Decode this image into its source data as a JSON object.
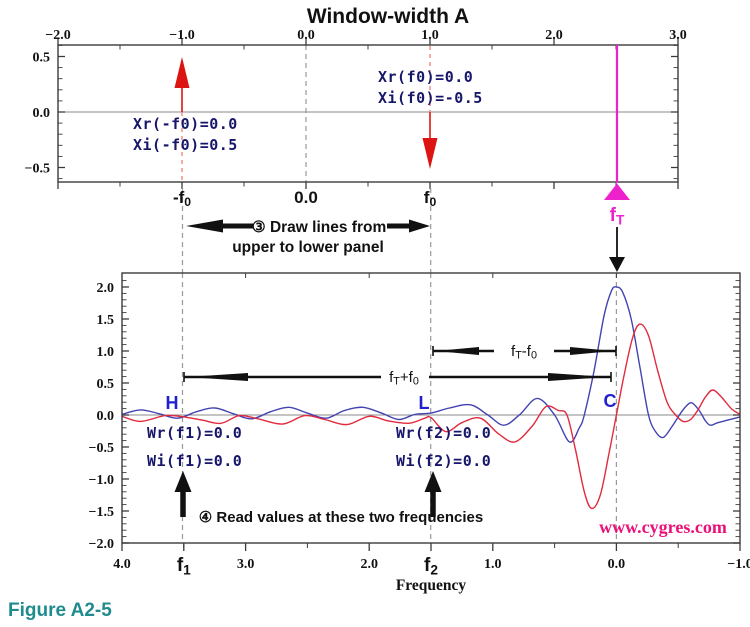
{
  "title": "Window-width A",
  "figure_caption": "Figure A2-5",
  "watermark": "www.cygres.com",
  "colors": {
    "arrow_red": "#dd1512",
    "dashed_red": "#f0857f",
    "magenta": "#ee22cc",
    "watermark_pink": "#ea1178",
    "navy_text": "#16166b",
    "hlc_blue": "#2020cc",
    "curve_blue": "#4343b2",
    "curve_red": "#e12b3e",
    "caption_teal": "#1f8b8d",
    "border_gray": "#3b3b3b",
    "zero_gray": "#888888",
    "dash_gray": "#9a9a9a"
  },
  "top_panel": {
    "x_ticks": [
      {
        "label": "−2.0",
        "f": -2
      },
      {
        "label": "−1.0",
        "f": -1
      },
      {
        "label": "0.0",
        "f": 0
      },
      {
        "label": "1.0",
        "f": 1
      },
      {
        "label": "2.0",
        "f": 2
      },
      {
        "label": "3.0",
        "f": 3
      }
    ],
    "y_ticks": [
      {
        "label": "0.5",
        "v": 0.5
      },
      {
        "label": "0.0",
        "v": 0.0
      },
      {
        "label": "−0.5",
        "v": -0.5
      }
    ],
    "value_labels": {
      "xr_neg": "Xr(-f0)=0.0",
      "xi_neg": "Xi(-f0)=0.5",
      "xr_pos": "Xr(f0)=0.0",
      "xi_pos": "Xi(f0)=-0.5"
    },
    "below_labels": {
      "neg": "-f0",
      "zero": "0.0",
      "pos": "f0"
    },
    "ft_label": "fT"
  },
  "annotations": {
    "step3_line1": "③ Draw lines from",
    "step3_line2": "upper to lower panel",
    "step4": "④ Read values at these two frequencies"
  },
  "bottom_panel": {
    "x_ticks": [
      {
        "label": "4.0",
        "f": 4
      },
      {
        "label": "3.0",
        "f": 3
      },
      {
        "label": "2.0",
        "f": 2
      },
      {
        "label": "1.0",
        "f": 1
      },
      {
        "label": "0.0",
        "f": 0
      },
      {
        "label": "−1.0",
        "f": -1
      }
    ],
    "freq_marks": [
      {
        "label": "f1",
        "f": 3.5
      },
      {
        "label": "f2",
        "f": 1.5
      }
    ],
    "y_ticks": [
      {
        "label": "2.0",
        "v": 2.0
      },
      {
        "label": "1.5",
        "v": 1.5
      },
      {
        "label": "1.0",
        "v": 1.0
      },
      {
        "label": "0.5",
        "v": 0.5
      },
      {
        "label": "0.0",
        "v": 0.0
      },
      {
        "label": "−0.5",
        "v": -0.5
      },
      {
        "label": "−1.0",
        "v": -1.0
      },
      {
        "label": "−1.5",
        "v": -1.5
      },
      {
        "label": "−2.0",
        "v": -2.0
      }
    ],
    "xlabel": "Frequency",
    "point_labels": {
      "H": "H",
      "L": "L",
      "C": "C"
    },
    "value_labels": {
      "wr_f1": "Wr(f1)=0.0",
      "wi_f1": "Wi(f1)=0.0",
      "wr_f2": "Wr(f2)=0.0",
      "wi_f2": "Wi(f2)=0.0"
    },
    "arrow_labels": {
      "ft_minus": "fT-f0",
      "ft_plus": "fT+f0"
    }
  },
  "chart_data": [
    {
      "type": "stem",
      "title": "Window-width A",
      "xlim": [
        -2,
        3
      ],
      "ylim": [
        -0.63,
        0.6
      ],
      "grid": false,
      "points": [
        {
          "f": -1.0,
          "Xr": 0.0,
          "Xi": 0.5,
          "arrow": "up",
          "color": "#dd1512"
        },
        {
          "f": 1.0,
          "Xr": 0.0,
          "Xi": -0.5,
          "arrow": "down",
          "color": "#dd1512"
        }
      ],
      "fT_marker": {
        "f": 2.5,
        "color": "#ee22cc"
      }
    },
    {
      "type": "line",
      "xlabel": "Frequency",
      "xlim": [
        4,
        -1
      ],
      "ylim": [
        -2,
        2
      ],
      "grid": false,
      "values_at": {
        "f1": 3.5,
        "f2": 1.5,
        "Wr_f1": 0.0,
        "Wi_f1": 0.0,
        "Wr_f2": 0.0,
        "Wi_f2": 0.0,
        "C": 0.0
      },
      "series": [
        {
          "name": "Wr",
          "color": "#4343b2",
          "points": [
            [
              4.0,
              0.01
            ],
            [
              3.85,
              0.08
            ],
            [
              3.7,
              0.02
            ],
            [
              3.55,
              -0.05
            ],
            [
              3.4,
              0.05
            ],
            [
              3.25,
              0.11
            ],
            [
              3.1,
              0.02
            ],
            [
              2.95,
              -0.06
            ],
            [
              2.8,
              0.05
            ],
            [
              2.65,
              0.12
            ],
            [
              2.5,
              0.03
            ],
            [
              2.35,
              -0.05
            ],
            [
              2.2,
              0.07
            ],
            [
              2.05,
              0.12
            ],
            [
              1.9,
              0.03
            ],
            [
              1.76,
              -0.07
            ],
            [
              1.63,
              0.01
            ],
            [
              1.5,
              0.03
            ],
            [
              1.35,
              0.11
            ],
            [
              1.18,
              0.16
            ],
            [
              1.04,
              0.0
            ],
            [
              0.91,
              -0.16
            ],
            [
              0.78,
              0.01
            ],
            [
              0.64,
              0.26
            ],
            [
              0.5,
              0.0
            ],
            [
              0.38,
              -0.42
            ],
            [
              0.3,
              -0.2
            ],
            [
              0.26,
              0.0
            ],
            [
              0.18,
              0.7
            ],
            [
              0.1,
              1.55
            ],
            [
              0.04,
              1.94
            ],
            [
              0.0,
              2.0
            ],
            [
              -0.05,
              1.92
            ],
            [
              -0.12,
              1.5
            ],
            [
              -0.19,
              0.75
            ],
            [
              -0.26,
              0.0
            ],
            [
              -0.32,
              -0.27
            ],
            [
              -0.38,
              -0.35
            ],
            [
              -0.45,
              -0.18
            ],
            [
              -0.51,
              0.0
            ],
            [
              -0.56,
              0.13
            ],
            [
              -0.61,
              0.19
            ],
            [
              -0.67,
              0.07
            ],
            [
              -0.72,
              -0.09
            ],
            [
              -0.76,
              -0.16
            ],
            [
              -0.82,
              -0.12
            ],
            [
              -0.9,
              -0.08
            ],
            [
              -1.0,
              -0.03
            ]
          ]
        },
        {
          "name": "Wi",
          "color": "#e12b3e",
          "points": [
            [
              4.0,
              -0.02
            ],
            [
              3.85,
              -0.1
            ],
            [
              3.65,
              -0.01
            ],
            [
              3.5,
              -0.03
            ],
            [
              3.35,
              -0.08
            ],
            [
              3.2,
              -0.13
            ],
            [
              3.05,
              -0.01
            ],
            [
              2.9,
              -0.06
            ],
            [
              2.7,
              -0.14
            ],
            [
              2.52,
              -0.01
            ],
            [
              2.36,
              -0.07
            ],
            [
              2.18,
              -0.15
            ],
            [
              2.0,
              -0.02
            ],
            [
              1.85,
              -0.09
            ],
            [
              1.68,
              -0.13
            ],
            [
              1.55,
              -0.05
            ],
            [
              1.5,
              -0.04
            ],
            [
              1.38,
              -0.26
            ],
            [
              1.25,
              -0.12
            ],
            [
              1.1,
              -0.05
            ],
            [
              0.95,
              -0.3
            ],
            [
              0.82,
              -0.42
            ],
            [
              0.68,
              -0.17
            ],
            [
              0.57,
              0.13
            ],
            [
              0.47,
              0.07
            ],
            [
              0.4,
              0.0
            ],
            [
              0.33,
              -0.55
            ],
            [
              0.26,
              -1.2
            ],
            [
              0.2,
              -1.46
            ],
            [
              0.13,
              -1.25
            ],
            [
              0.06,
              -0.6
            ],
            [
              0.0,
              0.0
            ],
            [
              -0.06,
              0.6
            ],
            [
              -0.13,
              1.2
            ],
            [
              -0.19,
              1.42
            ],
            [
              -0.26,
              1.24
            ],
            [
              -0.33,
              0.72
            ],
            [
              -0.41,
              0.2
            ],
            [
              -0.48,
              0.0
            ],
            [
              -0.54,
              -0.1
            ],
            [
              -0.6,
              -0.07
            ],
            [
              -0.66,
              0.08
            ],
            [
              -0.72,
              0.28
            ],
            [
              -0.78,
              0.39
            ],
            [
              -0.85,
              0.28
            ],
            [
              -0.93,
              0.1
            ],
            [
              -1.0,
              0.01
            ]
          ]
        }
      ]
    }
  ]
}
